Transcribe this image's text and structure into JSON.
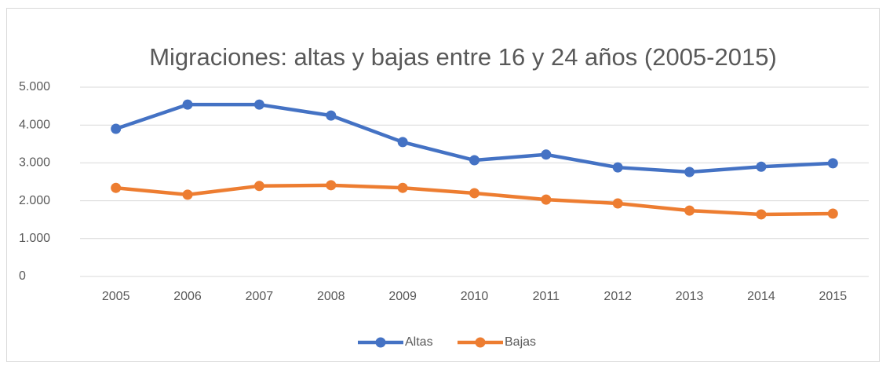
{
  "chart_data": {
    "type": "line",
    "title": "Migraciones: altas y bajas entre 16 y 24 años (2005-2015)",
    "categories": [
      "2005",
      "2006",
      "2007",
      "2008",
      "2009",
      "2010",
      "2011",
      "2012",
      "2013",
      "2014",
      "2015"
    ],
    "series": [
      {
        "name": "Altas",
        "color": "#4472c4",
        "values": [
          3900,
          4540,
          4540,
          4250,
          3550,
          3070,
          3220,
          2880,
          2760,
          2900,
          2990
        ]
      },
      {
        "name": "Bajas",
        "color": "#ed7d31",
        "values": [
          2340,
          2160,
          2390,
          2410,
          2340,
          2200,
          2030,
          1930,
          1740,
          1640,
          1660
        ]
      }
    ],
    "ylim": [
      0,
      5000
    ],
    "yticks": [
      0,
      {
        "value": 1000,
        "label": "1.000"
      },
      {
        "value": 2000,
        "label": "2.000"
      },
      {
        "value": 3000,
        "label": "3.000"
      },
      {
        "value": 4000,
        "label": "4.000"
      },
      {
        "value": 5000,
        "label": "5.000"
      }
    ],
    "grid": true,
    "legend": "bottom"
  }
}
